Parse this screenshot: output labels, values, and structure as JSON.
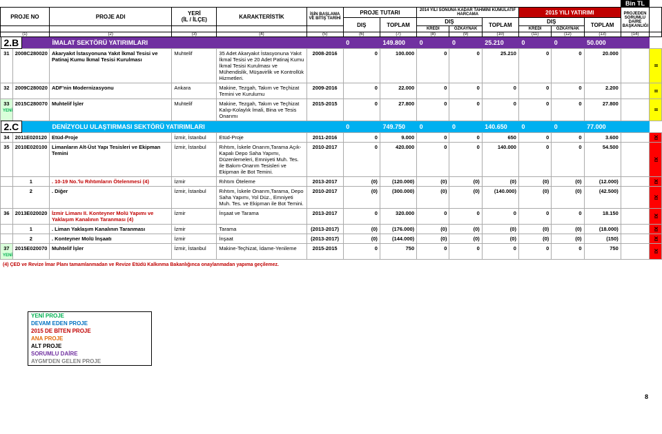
{
  "bintl": "Bin TL",
  "hdr": {
    "projeNo": "PROJE NO",
    "projeAdi": "PROJE ADI",
    "yer": "YERİ\n(İL / İLÇE)",
    "kar": "KARAKTERİSTİK",
    "isBaslama": "İŞİN BAŞLAMA VE BİTİŞ TARİHİ",
    "projeTutari": "PROJE TUTARI",
    "tahmini": "2014 YILI SONUNA KADAR TAHMİNİ KÜMÜLATİF HARCAMA",
    "yatirim": "2015 YILI YATIRIMI",
    "sorumlu": "PROJEDEN SORUMLU DAİRE BAŞKANLIĞI",
    "dis": "DIŞ",
    "toplam": "TOPLAM",
    "kredi": "KREDİ",
    "oz": "ÖZKAYNAK"
  },
  "cols": [
    "(1)",
    "(2)",
    "(3)",
    "(4)",
    "(5)",
    "(6)",
    "(7)",
    "(8)",
    "(9)",
    "(10)",
    "(11)",
    "(12)",
    "(13)",
    "(14)"
  ],
  "sect": {
    "b": {
      "code": "2.B",
      "title": "İMALAT SEKTÖRÜ YATIRIMLARI",
      "color": "#7030a0",
      "v": [
        "0",
        "149.800",
        "0",
        "0",
        "25.210",
        "0",
        "0",
        "50.000"
      ]
    },
    "c": {
      "code": "2.C",
      "title": "DENİZYOLU ULAŞTIRMASI SEKTÖRÜ YATIRIMLARI",
      "color": "#00b0f0",
      "v": [
        "0",
        "749.750",
        "0",
        "0",
        "140.650",
        "0",
        "0",
        "77.000"
      ]
    }
  },
  "rows": [
    {
      "idx": "31",
      "no": "2008C280020",
      "name": "Akaryakıt İstasyonuna Yakıt İkmal Tesisi ve Patinaj Kumu İkmal Tesisi Kurulması",
      "yer": "Muhtelif",
      "kar": "35 Adet Akaryakıt İstasyonuna Yakıt İkmal Tesisi ve 20 Adet Patinaj Kumu İkmal Tesisi Kurulması ve Mühendislik, Müşavirlik ve Kontrollük Hizmetleri.",
      "tar": "2008-2016",
      "v": [
        "0",
        "100.000",
        "0",
        "0",
        "25.210",
        "0",
        "0",
        "20.000"
      ],
      "side": "II",
      "sidecolor": "#ffff00"
    },
    {
      "idx": "32",
      "no": "2009C280020",
      "name": "ADF'nin Modernizasyonu",
      "yer": "Ankara",
      "kar": "Makine, Tezgah, Takım ve Teçhizat Temini ve Kurulumu",
      "tar": "2009-2016",
      "v": [
        "0",
        "22.000",
        "0",
        "0",
        "0",
        "0",
        "0",
        "2.200"
      ],
      "side": "II",
      "sidecolor": "#ffff00"
    },
    {
      "idx": "33",
      "yeni": "YENİ",
      "no": "2015C280070",
      "name": "Muhtelif İşler",
      "yer": "Muhtelif",
      "kar": "Makine, Tezgah, Takım ve Teçhizat Kalıp-Kolaylık İmali, Bina ve Tesis Onarımı",
      "tar": "2015-2015",
      "v": [
        "0",
        "27.800",
        "0",
        "0",
        "0",
        "0",
        "0",
        "27.800"
      ],
      "side": "II",
      "sidecolor": "#ffff00"
    },
    {
      "idx": "34",
      "no": "2011E020120",
      "name": "Etüd-Proje",
      "yer": "İzmir, İstanbul",
      "kar": "Etüd-Proje",
      "tar": "2011-2016",
      "v": [
        "0",
        "9.000",
        "0",
        "0",
        "650",
        "0",
        "0",
        "3.600"
      ],
      "side": "XI",
      "sidecolor": "#ff0000"
    },
    {
      "idx": "35",
      "no": "2010E020100",
      "name": "Limanların Alt-Üst Yapı Tesisleri ve Ekipman Temini",
      "yer": "İzmir, İstanbul",
      "kar": "Rıhtım, İskele Onarım,Tarama Açık-Kapalı Depo Saha Yapımı, Düzenlemeleri, Emniyeti Muh. Tes. ile Bakım-Onarım Tesisleri ve Ekipman ile Bot Temini.",
      "tar": "2010-2017",
      "v": [
        "0",
        "420.000",
        "0",
        "0",
        "140.000",
        "0",
        "0",
        "54.500"
      ],
      "side": "XI",
      "sidecolor": "#ff0000"
    },
    {
      "idx": "",
      "sub": "1",
      "no": "",
      "name": ". 10-19 No.'lu Rıhtımların Ötelenmesi (4)",
      "red": true,
      "yer": "İzmir",
      "kar": "Rıhtım Öteleme",
      "tar": "2013-2017",
      "v": [
        "(0)",
        "(120.000)",
        "(0)",
        "(0)",
        "(0)",
        "(0)",
        "(0)",
        "(12.000)"
      ],
      "side": "XI",
      "sidecolor": "#ff0000"
    },
    {
      "idx": "",
      "sub": "2",
      "no": "",
      "name": ". Diğer",
      "yer": "İzmir, İstanbul",
      "kar": "Rıhtım, İskele Onarım,Tarama, Depo Saha Yapımı, Yol Düz., Emniyeti Muh. Tes. ve Ekipman ile Bot Temini.",
      "tar": "2010-2017",
      "v": [
        "(0)",
        "(300.000)",
        "(0)",
        "(0)",
        "(140.000)",
        "(0)",
        "(0)",
        "(42.500)"
      ],
      "side": "XI",
      "sidecolor": "#ff0000"
    },
    {
      "idx": "36",
      "no": "2013E020020",
      "name": "İzmir Limanı II. Konteyner Molü Yapımı ve Yaklaşım Kanalının Taranması (4)",
      "red": true,
      "yer": "İzmir",
      "kar": "İnşaat ve Tarama",
      "tar": "2013-2017",
      "v": [
        "0",
        "320.000",
        "0",
        "0",
        "0",
        "0",
        "0",
        "18.150"
      ],
      "side": "XI",
      "sidecolor": "#ff0000"
    },
    {
      "idx": "",
      "sub": "1",
      "no": "",
      "name": ". Liman Yaklaşım Kanalının Taranması",
      "yer": "İzmir",
      "kar": "Tarama",
      "tar": "(2013-2017)",
      "v": [
        "(0)",
        "(176.000)",
        "(0)",
        "(0)",
        "(0)",
        "(0)",
        "(0)",
        "(18.000)"
      ],
      "side": "XI",
      "sidecolor": "#ff0000"
    },
    {
      "idx": "",
      "sub": "2",
      "no": "",
      "name": ". Konteyner Molü İnşaatı",
      "yer": "İzmir",
      "kar": "İnşaat",
      "tar": "(2013-2017)",
      "v": [
        "(0)",
        "(144.000)",
        "(0)",
        "(0)",
        "(0)",
        "(0)",
        "(0)",
        "(150)"
      ],
      "side": "XI",
      "sidecolor": "#ff0000"
    },
    {
      "idx": "37",
      "yeni": "YENİ",
      "no": "2015E020070",
      "name": "Muhtelif İşler",
      "yer": "İzmir, İstanbul",
      "kar": "Makine-Teçhizat, İdame-Yenileme",
      "tar": "2015-2015",
      "v": [
        "0",
        "750",
        "0",
        "0",
        "0",
        "0",
        "0",
        "750"
      ],
      "side": "XI",
      "sidecolor": "#ff0000"
    }
  ],
  "legend": [
    {
      "c": "#00b050",
      "t": "YENİ PROJE"
    },
    {
      "c": "#0070c0",
      "t": "DEVAM EDEN PROJE"
    },
    {
      "c": "#c00000",
      "t": "2015 DE BİTEN PROJE"
    },
    {
      "c": "#e26b0a",
      "t": "ANA PROJE"
    },
    {
      "c": "#000000",
      "t": "ALT PROJE"
    },
    {
      "c": "#7030a0",
      "t": "SORUMLU DAİRE"
    },
    {
      "c": "#808080",
      "t": "AYGM'DEN GELEN PROJE"
    }
  ],
  "note": "(4) ÇED ve Revize İmar Planı tamamlanmadan ve Revize Etüdü Kalkınma Bakanlığınca onaylanmadan yapıma geçilemez.",
  "page": "8"
}
